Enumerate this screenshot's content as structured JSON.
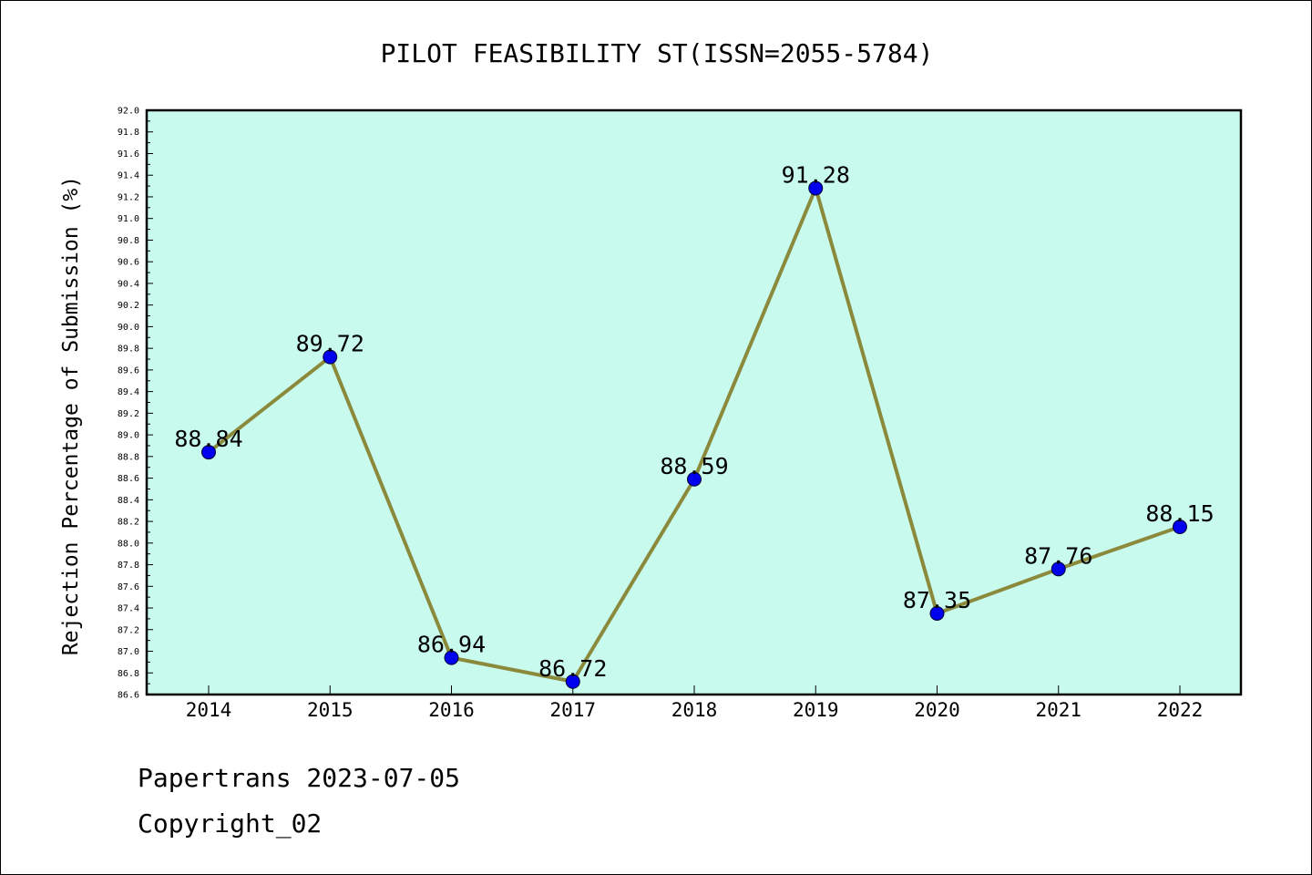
{
  "chart_data": {
    "type": "line",
    "title": "PILOT FEASIBILITY ST(ISSN=2055-5784)",
    "xlabel": "",
    "ylabel": "Rejection Percentage of Submission (%)",
    "categories": [
      "2014",
      "2015",
      "2016",
      "2017",
      "2018",
      "2019",
      "2020",
      "2021",
      "2022"
    ],
    "series": [
      {
        "values": [
          88.84,
          89.72,
          86.94,
          86.72,
          88.59,
          91.28,
          87.35,
          87.76,
          88.15
        ],
        "data_labels": [
          "88.84",
          "89.72",
          "86.94",
          "86.72",
          "88.59",
          "91.28",
          "87.35",
          "87.76",
          "88.15"
        ],
        "line_color": "#8b8a3c",
        "marker_color": "#0000ee"
      }
    ],
    "ylim": [
      86.6,
      92.0
    ],
    "y_ticks": [
      "86.6",
      "86.8",
      "87.0",
      "87.2",
      "87.4",
      "87.6",
      "87.8",
      "88.0",
      "88.2",
      "88.4",
      "88.6",
      "88.8",
      "89.0",
      "89.2",
      "89.4",
      "89.6",
      "89.8",
      "90.0",
      "90.2",
      "90.4",
      "90.6",
      "90.8",
      "91.0",
      "91.2",
      "91.4",
      "91.6",
      "91.8",
      "92.0"
    ],
    "grid": false,
    "plot_background": "#c8fbee"
  },
  "footer": {
    "line1": "Papertrans 2023-07-05",
    "line2": "Copyright_02"
  }
}
